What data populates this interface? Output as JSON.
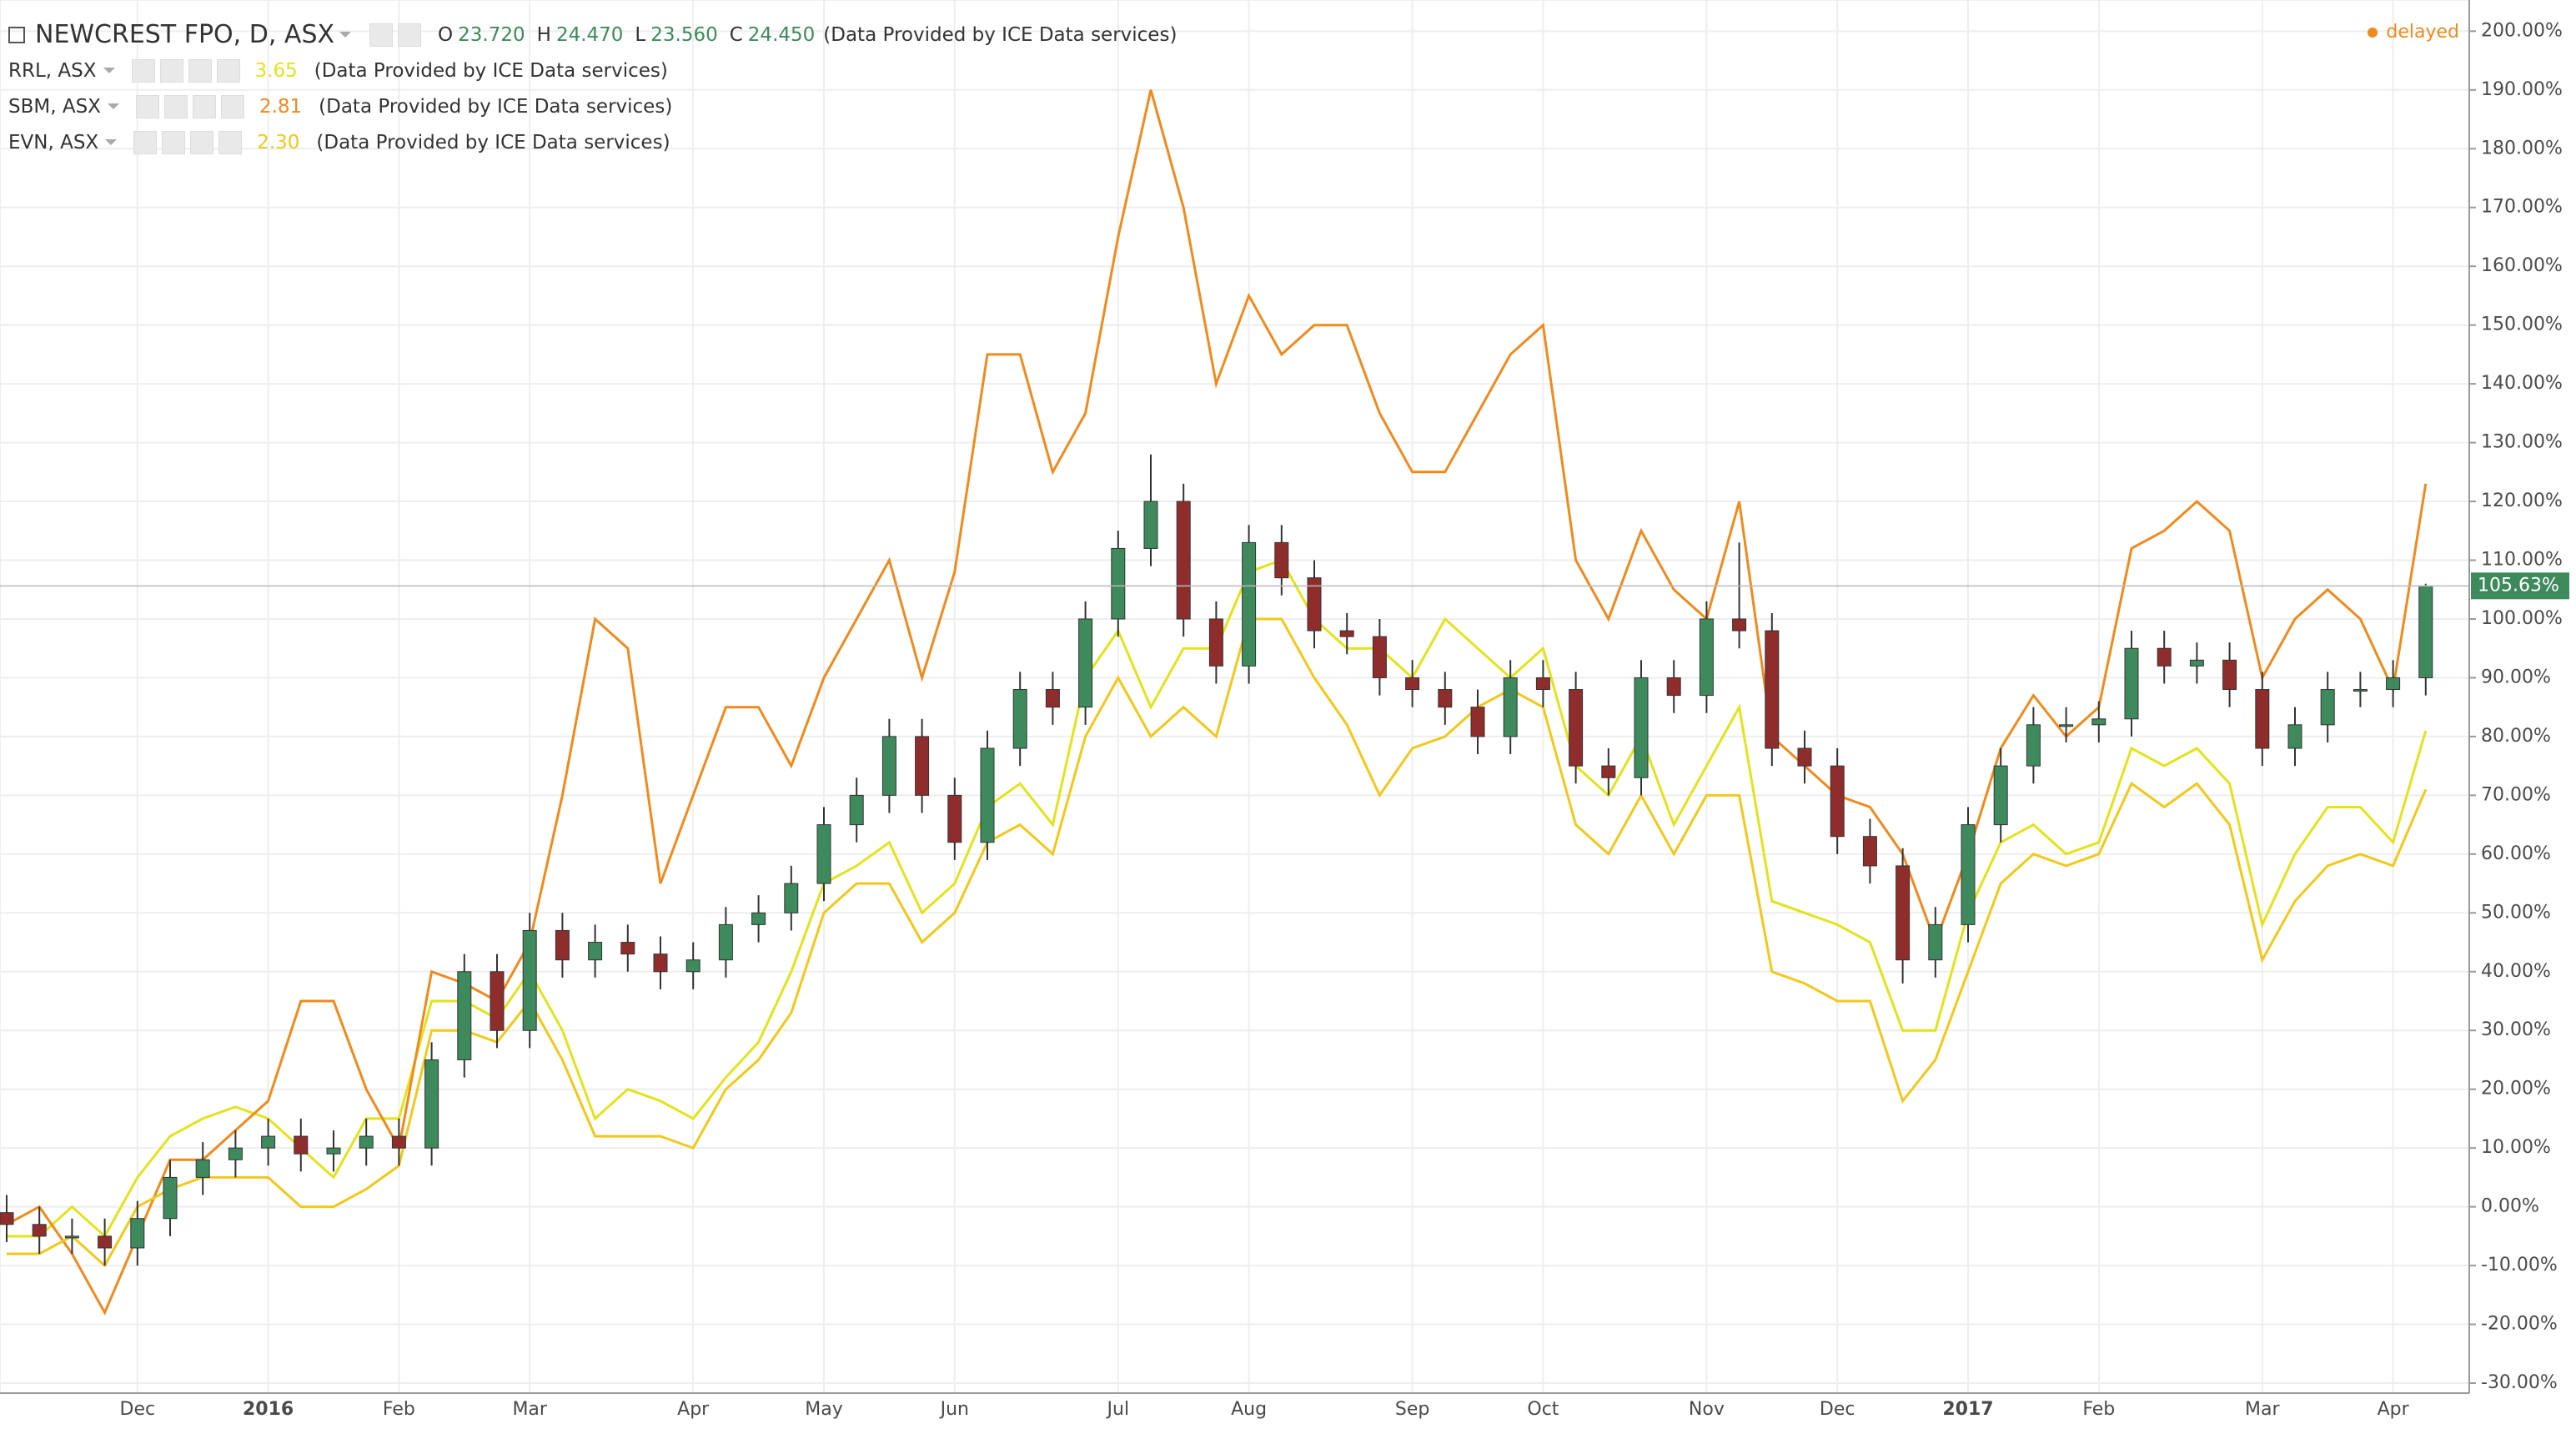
{
  "chart_data": {
    "type": "candlestick",
    "title": "NEWCREST FPO, D, ASX",
    "ohlc": [
      {
        "key": "O",
        "value": 23.72,
        "label": "23.720"
      },
      {
        "key": "H",
        "value": 24.47,
        "label": "24.470"
      },
      {
        "key": "L",
        "value": 23.56,
        "label": "23.560"
      },
      {
        "key": "C",
        "value": 24.45,
        "label": "24.450"
      }
    ],
    "source": "(Data Provided by ICE Data services)",
    "status": "delayed",
    "categories": [
      null,
      null,
      null,
      null,
      "Dec",
      null,
      null,
      null,
      "2016",
      null,
      null,
      null,
      "Feb",
      null,
      null,
      null,
      "Mar",
      null,
      null,
      null,
      null,
      "Apr",
      null,
      null,
      null,
      "May",
      null,
      null,
      null,
      "Jun",
      null,
      null,
      null,
      null,
      "Jul",
      null,
      null,
      null,
      "Aug",
      null,
      null,
      null,
      null,
      "Sep",
      null,
      null,
      null,
      "Oct",
      null,
      null,
      null,
      null,
      "Nov",
      null,
      null,
      null,
      "Dec",
      null,
      null,
      null,
      "2017",
      null,
      null,
      null,
      "Feb",
      null,
      null,
      null,
      null,
      "Mar",
      null,
      null,
      null,
      "Apr",
      null
    ],
    "candles": {
      "up_color": "#3e8a5c",
      "down_color": "#8f2d2d",
      "wick_color": "#333333",
      "last_label": "105.63%",
      "open": [
        -1,
        -3,
        -5,
        -5,
        -7,
        -2,
        5,
        8,
        10,
        12,
        9,
        10,
        12,
        10,
        25,
        40,
        30,
        47,
        42,
        45,
        43,
        40,
        42,
        48,
        50,
        55,
        65,
        70,
        80,
        70,
        62,
        78,
        88,
        85,
        100,
        112,
        120,
        100,
        92,
        113,
        107,
        98,
        97,
        90,
        88,
        85,
        80,
        90,
        88,
        75,
        73,
        90,
        87,
        100,
        98,
        78,
        75,
        63,
        58,
        42,
        48,
        65,
        75,
        82,
        82,
        83,
        95,
        92,
        93,
        88,
        78,
        82,
        88,
        88,
        90
      ],
      "high": [
        2,
        0,
        -2,
        -2,
        1,
        8,
        11,
        13,
        15,
        15,
        13,
        15,
        15,
        28,
        43,
        43,
        50,
        50,
        48,
        48,
        46,
        45,
        51,
        53,
        58,
        68,
        73,
        83,
        83,
        73,
        81,
        91,
        91,
        103,
        115,
        128,
        123,
        103,
        116,
        116,
        110,
        101,
        100,
        93,
        91,
        88,
        93,
        93,
        91,
        78,
        93,
        93,
        103,
        113,
        101,
        81,
        78,
        66,
        61,
        51,
        68,
        78,
        85,
        85,
        86,
        98,
        98,
        96,
        96,
        91,
        85,
        91,
        91,
        93,
        106
      ],
      "low": [
        -6,
        -8,
        -8,
        -10,
        -10,
        -5,
        2,
        5,
        7,
        6,
        6,
        7,
        7,
        7,
        22,
        27,
        27,
        39,
        39,
        40,
        37,
        37,
        39,
        45,
        47,
        52,
        62,
        67,
        67,
        59,
        59,
        75,
        82,
        82,
        97,
        109,
        97,
        89,
        89,
        104,
        95,
        94,
        87,
        85,
        82,
        77,
        77,
        85,
        72,
        70,
        70,
        84,
        84,
        95,
        75,
        72,
        60,
        55,
        38,
        39,
        45,
        62,
        72,
        79,
        79,
        80,
        89,
        89,
        85,
        75,
        75,
        79,
        85,
        85,
        87
      ],
      "close": [
        -3,
        -5,
        -5,
        -7,
        -2,
        5,
        8,
        10,
        12,
        9,
        10,
        12,
        10,
        25,
        40,
        30,
        47,
        42,
        45,
        43,
        40,
        42,
        48,
        50,
        55,
        65,
        70,
        80,
        70,
        62,
        78,
        88,
        85,
        100,
        112,
        120,
        100,
        92,
        113,
        107,
        98,
        97,
        90,
        88,
        85,
        80,
        90,
        88,
        75,
        73,
        90,
        87,
        100,
        98,
        78,
        75,
        63,
        58,
        42,
        48,
        65,
        75,
        82,
        82,
        83,
        95,
        92,
        93,
        88,
        78,
        82,
        88,
        88,
        90,
        105.63
      ]
    },
    "series": [
      {
        "name": "RRL, ASX",
        "color": "#e3e31c",
        "last": 3.65,
        "source": "(Data Provided by ICE Data services)",
        "values": [
          -5,
          -5,
          0,
          -5,
          5,
          12,
          15,
          17,
          15,
          10,
          5,
          15,
          15,
          35,
          35,
          32,
          40,
          30,
          15,
          20,
          18,
          15,
          22,
          28,
          40,
          55,
          58,
          62,
          50,
          55,
          68,
          72,
          65,
          90,
          98,
          85,
          95,
          95,
          108,
          110,
          100,
          95,
          95,
          90,
          100,
          95,
          90,
          95,
          75,
          70,
          80,
          65,
          75,
          85,
          52,
          50,
          48,
          45,
          30,
          30,
          50,
          62,
          65,
          60,
          62,
          78,
          75,
          78,
          72,
          48,
          60,
          68,
          68,
          62,
          81
        ]
      },
      {
        "name": "SBM, ASX",
        "color": "#f08a1c",
        "last": 2.81,
        "source": "(Data Provided by ICE Data services)",
        "values": [
          -3,
          0,
          -8,
          -18,
          -5,
          8,
          8,
          13,
          18,
          35,
          35,
          20,
          10,
          40,
          38,
          35,
          45,
          70,
          100,
          95,
          55,
          70,
          85,
          85,
          75,
          90,
          100,
          110,
          90,
          108,
          145,
          145,
          125,
          135,
          165,
          190,
          170,
          140,
          155,
          145,
          150,
          150,
          135,
          125,
          125,
          135,
          145,
          150,
          110,
          100,
          115,
          105,
          100,
          120,
          80,
          75,
          70,
          68,
          60,
          45,
          60,
          78,
          87,
          80,
          85,
          112,
          115,
          120,
          115,
          90,
          100,
          105,
          100,
          88,
          123
        ]
      },
      {
        "name": "EVN, ASX",
        "color": "#f2c81a",
        "last": {
          "value": 2.3,
          "label": "2.30"
        },
        "source": "(Data Provided by ICE Data services)",
        "values": [
          -8,
          -8,
          -5,
          -10,
          0,
          3,
          5,
          5,
          5,
          0,
          0,
          3,
          7,
          30,
          30,
          28,
          35,
          25,
          12,
          12,
          12,
          10,
          20,
          25,
          33,
          50,
          55,
          55,
          45,
          50,
          62,
          65,
          60,
          80,
          90,
          80,
          85,
          80,
          100,
          100,
          90,
          82,
          70,
          78,
          80,
          85,
          88,
          85,
          65,
          60,
          70,
          60,
          70,
          70,
          40,
          38,
          35,
          35,
          18,
          25,
          40,
          55,
          60,
          58,
          60,
          72,
          68,
          72,
          65,
          42,
          52,
          58,
          60,
          58,
          71
        ]
      }
    ],
    "ylim": [
      -31.7,
      205.3
    ],
    "yticks": [
      {
        "value": -30,
        "label": "-30.00%"
      },
      {
        "value": -20,
        "label": "-20.00%"
      },
      {
        "value": -10,
        "label": "-10.00%"
      },
      {
        "value": 0,
        "label": "0.00%"
      },
      {
        "value": 10,
        "label": "10.00%"
      },
      {
        "value": 20,
        "label": "20.00%"
      },
      {
        "value": 30,
        "label": "30.00%"
      },
      {
        "value": 40,
        "label": "40.00%"
      },
      {
        "value": 50,
        "label": "50.00%"
      },
      {
        "value": 60,
        "label": "60.00%"
      },
      {
        "value": 70,
        "label": "70.00%"
      },
      {
        "value": 80,
        "label": "80.00%"
      },
      {
        "value": 90,
        "label": "90.00%"
      },
      {
        "value": 100,
        "label": "100.00%"
      },
      {
        "value": 110,
        "label": "110.00%"
      },
      {
        "value": 120,
        "label": "120.00%"
      },
      {
        "value": 130,
        "label": "130.00%"
      },
      {
        "value": 140,
        "label": "140.00%"
      },
      {
        "value": 150,
        "label": "150.00%"
      },
      {
        "value": 160,
        "label": "160.00%"
      },
      {
        "value": 170,
        "label": "170.00%"
      },
      {
        "value": 180,
        "label": "180.00%"
      },
      {
        "value": 190,
        "label": "190.00%"
      },
      {
        "value": 200,
        "label": "200.00%"
      }
    ],
    "grid": true
  }
}
